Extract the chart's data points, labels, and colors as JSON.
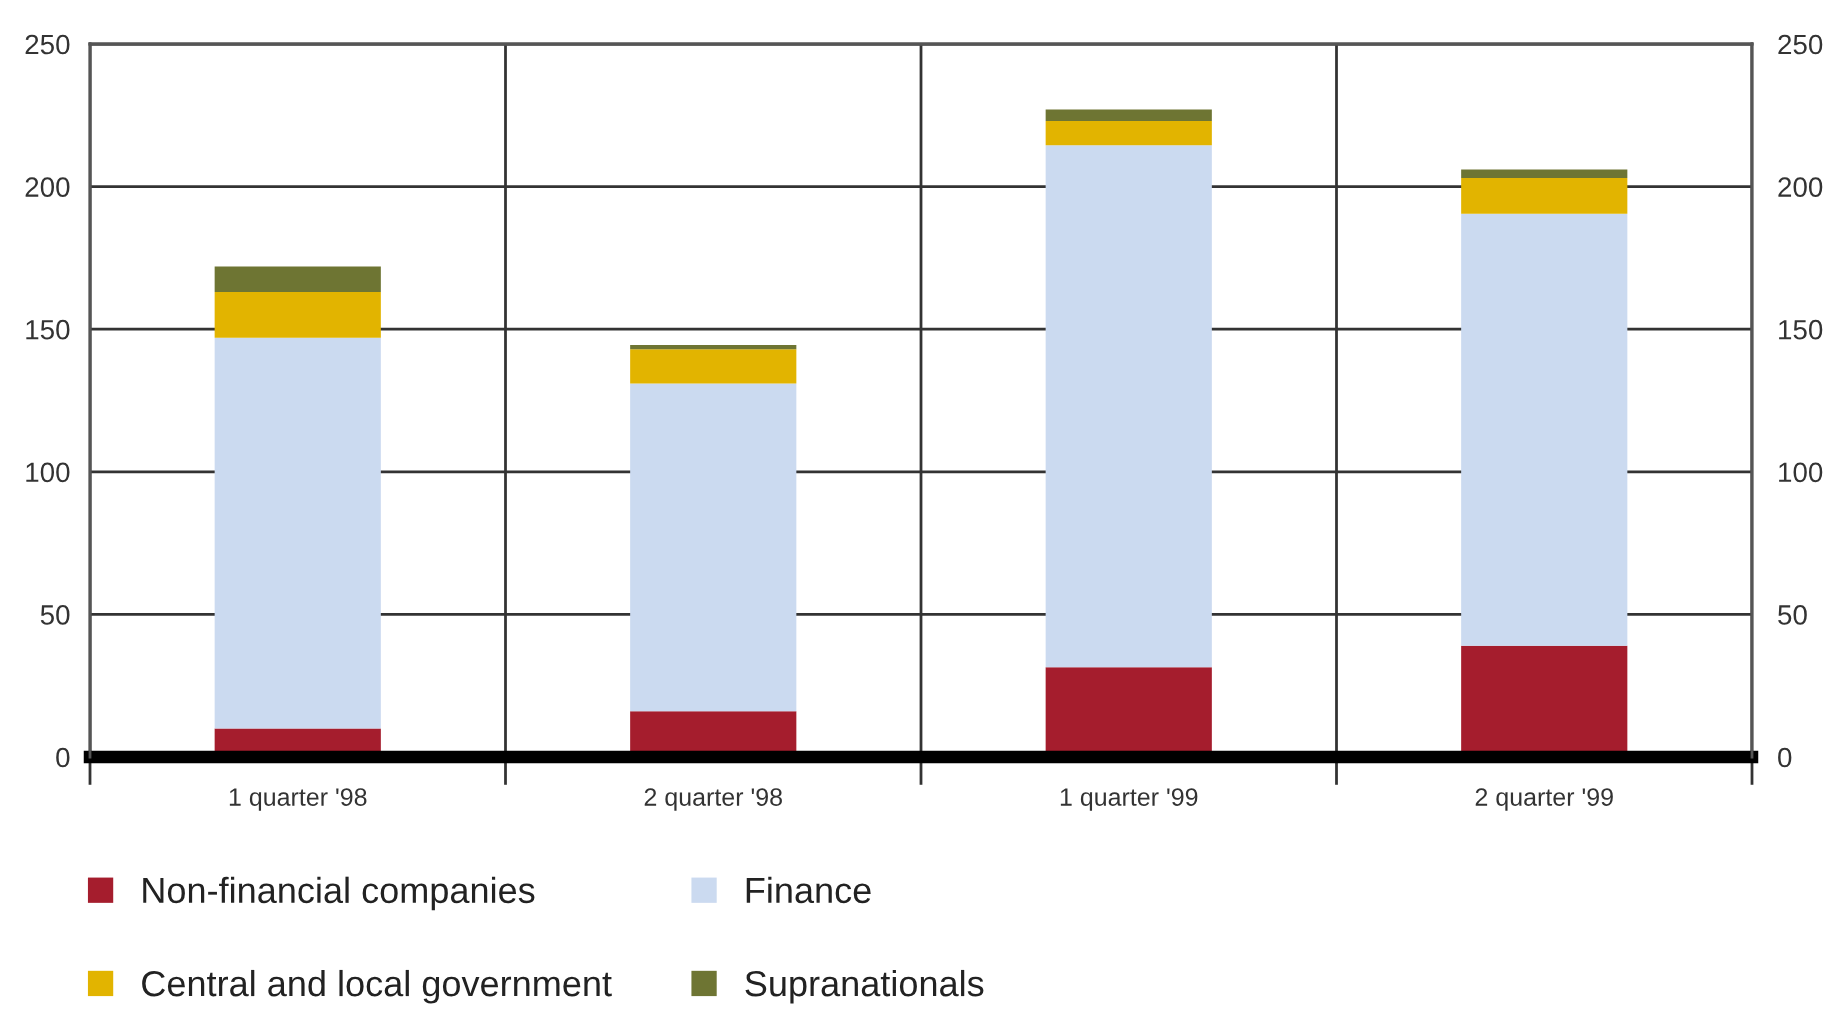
{
  "chart_data": {
    "type": "bar",
    "stacked": true,
    "categories": [
      "1 quarter '98",
      "2 quarter '98",
      "1 quarter '99",
      "2 quarter '99"
    ],
    "series": [
      {
        "name": "Non-financial companies",
        "color": "#a51d2d",
        "values": [
          10,
          16,
          31.5,
          39
        ]
      },
      {
        "name": "Finance",
        "color": "#cbdaf0",
        "values": [
          137,
          115,
          183,
          151.5
        ]
      },
      {
        "name": "Central and local government",
        "color": "#e2b400",
        "values": [
          16,
          12,
          8.5,
          12.5
        ]
      },
      {
        "name": "Supranationals",
        "color": "#6e7533",
        "values": [
          9,
          1.5,
          4,
          3
        ]
      }
    ],
    "ylim": [
      0,
      250
    ],
    "yticks": [
      0,
      50,
      100,
      150,
      200,
      250
    ],
    "y2lim": [
      0,
      250
    ],
    "y2ticks": [
      0,
      50,
      100,
      150,
      200,
      250
    ],
    "grid": true,
    "legend": "bottom"
  }
}
